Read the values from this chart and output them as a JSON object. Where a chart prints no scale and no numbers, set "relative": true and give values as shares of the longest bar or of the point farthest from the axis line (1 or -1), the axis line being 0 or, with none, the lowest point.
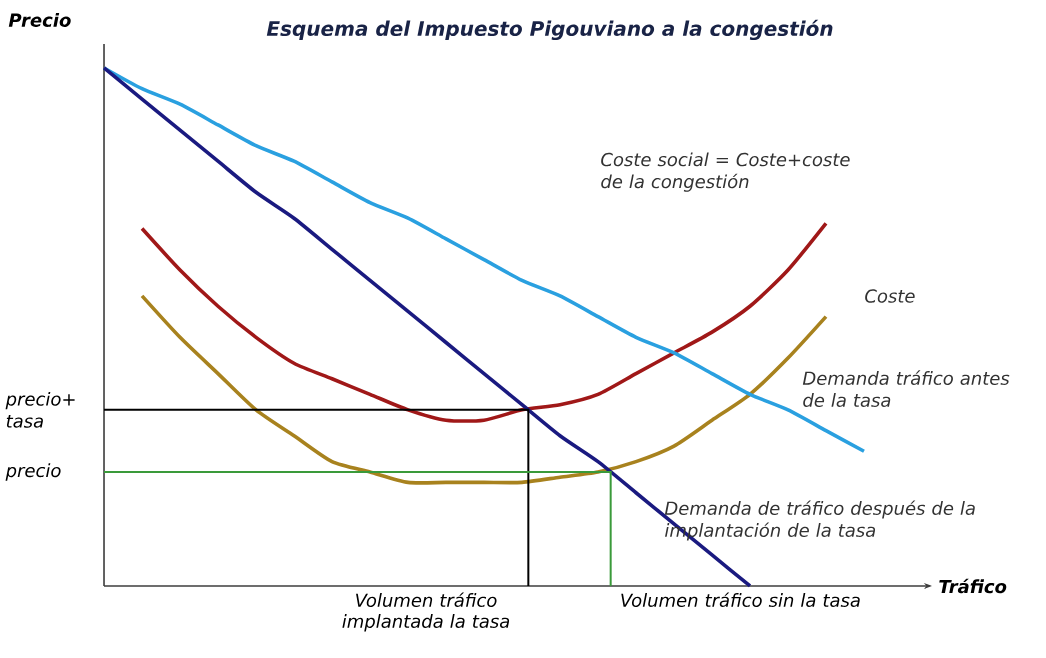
{
  "chart_data": {
    "type": "line",
    "title": "Esquema del Impuesto Pigouviano a la congestión",
    "xlabel": "Tráfico",
    "ylabel": "Precio",
    "relative": true,
    "marker": "none",
    "line_style": "solid",
    "annotations": [
      "Volumen tráfico implantada la tasa",
      "Volumen tráfico sin la tasa"
    ],
    "categories": [
      null,
      null,
      null,
      null,
      null,
      null,
      null,
      null,
      null,
      null,
      null,
      null,
      null,
      null,
      null,
      null,
      null,
      null,
      null,
      null,
      null
    ],
    "series": [
      {
        "name": "Coste social = Coste+coste de la congestión",
        "color": "#a01818",
        "values": [
          null,
          0.69,
          0.61,
          0.54,
          0.48,
          0.43,
          0.4,
          0.37,
          0.34,
          0.32,
          0.32,
          0.34,
          0.35,
          0.37,
          0.41,
          0.45,
          0.49,
          0.54,
          0.61,
          0.7,
          null
        ]
      },
      {
        "name": "Coste",
        "color": "#a8821e",
        "values": [
          null,
          0.56,
          0.48,
          0.41,
          0.34,
          0.29,
          0.24,
          0.22,
          0.2,
          0.2,
          0.2,
          0.2,
          0.21,
          0.22,
          0.24,
          0.27,
          0.32,
          0.37,
          0.44,
          0.52,
          null
        ]
      },
      {
        "name": "Demanda tráfico antes de la tasa",
        "color": "#2aa0e0",
        "values": [
          1,
          0.96,
          0.93,
          0.89,
          0.85,
          0.82,
          0.78,
          0.74,
          0.71,
          0.67,
          0.63,
          0.59,
          0.56,
          0.52,
          0.48,
          0.45,
          0.41,
          0.37,
          0.34,
          0.3,
          0.26
        ]
      },
      {
        "name": "Demanda de tráfico después de la implantación de la tasa",
        "color": "#1a1a80",
        "values": [
          1,
          0.94,
          0.88,
          0.82,
          0.76,
          0.71,
          0.65,
          0.59,
          0.53,
          0.47,
          0.41,
          0.35,
          0.29,
          0.24,
          0.18,
          0.12,
          0.06,
          0,
          null,
          null,
          null
        ]
      }
    ],
    "ref_lines": [
      {
        "axis": "y",
        "value": 0.34,
        "label": "precio+ tasa",
        "color": "#000000"
      },
      {
        "axis": "y",
        "value": 0.22,
        "label": "precio",
        "color": "#3a9a3a"
      }
    ]
  }
}
